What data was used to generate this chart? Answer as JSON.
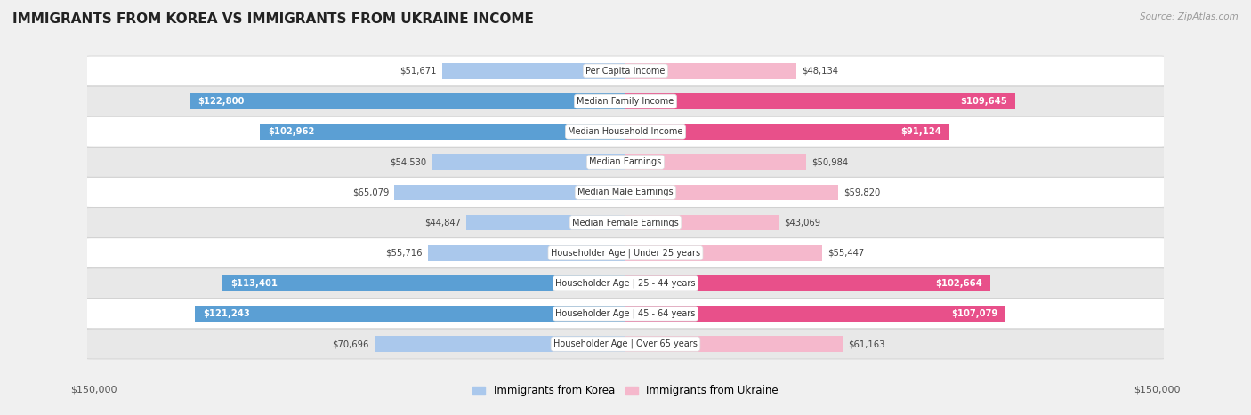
{
  "title": "IMMIGRANTS FROM KOREA VS IMMIGRANTS FROM UKRAINE INCOME",
  "source": "Source: ZipAtlas.com",
  "categories": [
    "Per Capita Income",
    "Median Family Income",
    "Median Household Income",
    "Median Earnings",
    "Median Male Earnings",
    "Median Female Earnings",
    "Householder Age | Under 25 years",
    "Householder Age | 25 - 44 years",
    "Householder Age | 45 - 64 years",
    "Householder Age | Over 65 years"
  ],
  "korea_values": [
    51671,
    122800,
    102962,
    54530,
    65079,
    44847,
    55716,
    113401,
    121243,
    70696
  ],
  "ukraine_values": [
    48134,
    109645,
    91124,
    50984,
    59820,
    43069,
    55447,
    102664,
    107079,
    61163
  ],
  "korea_labels": [
    "$51,671",
    "$122,800",
    "$102,962",
    "$54,530",
    "$65,079",
    "$44,847",
    "$55,716",
    "$113,401",
    "$121,243",
    "$70,696"
  ],
  "ukraine_labels": [
    "$48,134",
    "$109,645",
    "$91,124",
    "$50,984",
    "$59,820",
    "$43,069",
    "$55,447",
    "$102,664",
    "$107,079",
    "$61,163"
  ],
  "korea_color_light": "#aac8ec",
  "korea_color_dark": "#5b9fd4",
  "ukraine_color_light": "#f5b8cc",
  "ukraine_color_dark": "#e8508a",
  "max_value": 150000,
  "bar_height": 0.52,
  "background_color": "#f0f0f0",
  "row_bg_light": "#ffffff",
  "row_bg_dark": "#e8e8e8",
  "label_korea_legend": "Immigrants from Korea",
  "label_ukraine_legend": "Immigrants from Ukraine",
  "threshold_dark": 80000
}
